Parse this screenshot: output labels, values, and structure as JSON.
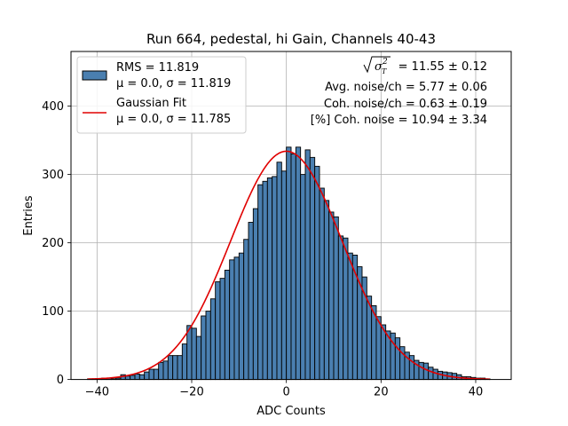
{
  "chart_data": {
    "type": "bar",
    "title": "Run 664, pedestal, hi Gain, Channels 40-43",
    "xlabel": "ADC Counts",
    "ylabel": "Entries",
    "xlim": [
      -45.5,
      47.5
    ],
    "ylim": [
      0,
      480
    ],
    "xticks": [
      -40,
      -20,
      0,
      20,
      40
    ],
    "yticks": [
      0,
      100,
      200,
      300,
      400
    ],
    "xtick_labels": [
      "−40",
      "−20",
      "0",
      "20",
      "40"
    ],
    "ytick_labels": [
      "0",
      "100",
      "200",
      "300",
      "400"
    ],
    "grid": true,
    "bin_width": 1,
    "bin_start": -42,
    "counts": [
      1,
      1,
      1,
      2,
      2,
      1,
      2,
      7,
      5,
      6,
      8,
      7,
      11,
      15,
      15,
      25,
      27,
      35,
      35,
      35,
      52,
      79,
      75,
      63,
      93,
      100,
      118,
      143,
      148,
      160,
      175,
      179,
      185,
      205,
      230,
      250,
      285,
      290,
      295,
      297,
      318,
      305,
      340,
      330,
      340,
      300,
      336,
      325,
      312,
      280,
      262,
      245,
      238,
      210,
      207,
      185,
      182,
      165,
      150,
      122,
      108,
      92,
      80,
      71,
      68,
      61,
      48,
      40,
      35,
      28,
      25,
      24,
      18,
      15,
      12,
      11,
      10,
      9,
      7,
      4,
      4,
      3,
      2,
      2,
      1
    ],
    "fit": {
      "name": "Gaussian Fit",
      "mu": 0.0,
      "sigma": 11.785,
      "amplitude": 334,
      "color": "#e00000"
    },
    "bar_color": "#4a7fb0",
    "legend": {
      "position": "upper left",
      "entries": [
        {
          "line1": "RMS = 11.819",
          "line2": "μ = 0.0, σ = 11.819",
          "kind": "patch"
        },
        {
          "line1": "Gaussian Fit",
          "line2": "μ = 0.0, σ = 11.785",
          "kind": "line"
        }
      ]
    },
    "annotations": {
      "sigma_rhs": " = 11.55 ± 0.12",
      "avg_noise": "Avg. noise/ch = 5.77 ± 0.06",
      "coh_noise": "Coh. noise/ch = 0.63 ± 0.19",
      "coh_pct": "[%] Coh. noise = 10.94 ± 3.34"
    }
  }
}
